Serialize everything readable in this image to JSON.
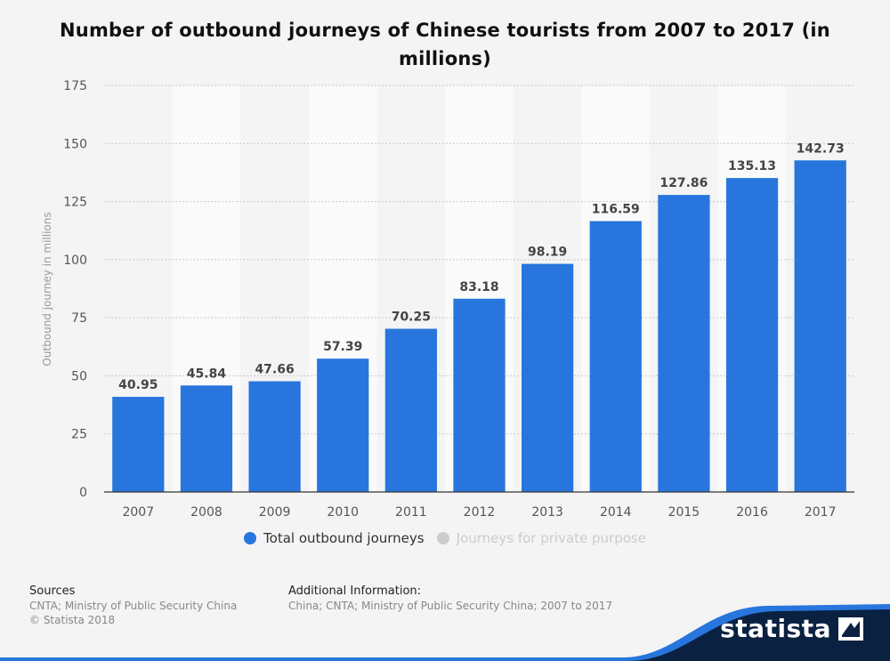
{
  "chart_data": {
    "type": "bar",
    "title": "Number of outbound journeys of Chinese tourists from 2007 to 2017 (in millions)",
    "xlabel": "",
    "ylabel": "Outbound journey in millions",
    "categories": [
      "2007",
      "2008",
      "2009",
      "2010",
      "2011",
      "2012",
      "2013",
      "2014",
      "2015",
      "2016",
      "2017"
    ],
    "series": [
      {
        "name": "Total outbound journeys",
        "values": [
          40.95,
          45.84,
          47.66,
          57.39,
          70.25,
          83.18,
          98.19,
          116.59,
          127.86,
          135.13,
          142.73
        ],
        "color": "#2876dd"
      }
    ],
    "data_labels": [
      "40.95",
      "45.84",
      "47.66",
      "57.39",
      "70.25",
      "83.18",
      "98.19",
      "116.59",
      "127.86",
      "135.13",
      "142.73"
    ],
    "ylim": [
      0,
      175
    ],
    "yticks": [
      0,
      25,
      50,
      75,
      100,
      125,
      150,
      175
    ],
    "grid": true,
    "legend_position": "bottom-center"
  },
  "legend": {
    "items": [
      {
        "label": "Total outbound journeys",
        "color": "#2876dd",
        "text_color": "#333333"
      },
      {
        "label": "Journeys for private purpose",
        "color": "#cccccc",
        "text_color": "#cccccc"
      }
    ]
  },
  "footer": {
    "sources_heading": "Sources",
    "sources_line1": "CNTA; Ministry of Public Security China",
    "sources_line2": "© Statista 2018",
    "additional_heading": "Additional Information:",
    "additional_text": "China; CNTA; Ministry of Public Security China; 2007 to 2017",
    "logo_text": "statista"
  },
  "colors": {
    "bar": "#2876dd",
    "footer_dark": "#0a2141",
    "footer_accent": "#2876dd"
  }
}
